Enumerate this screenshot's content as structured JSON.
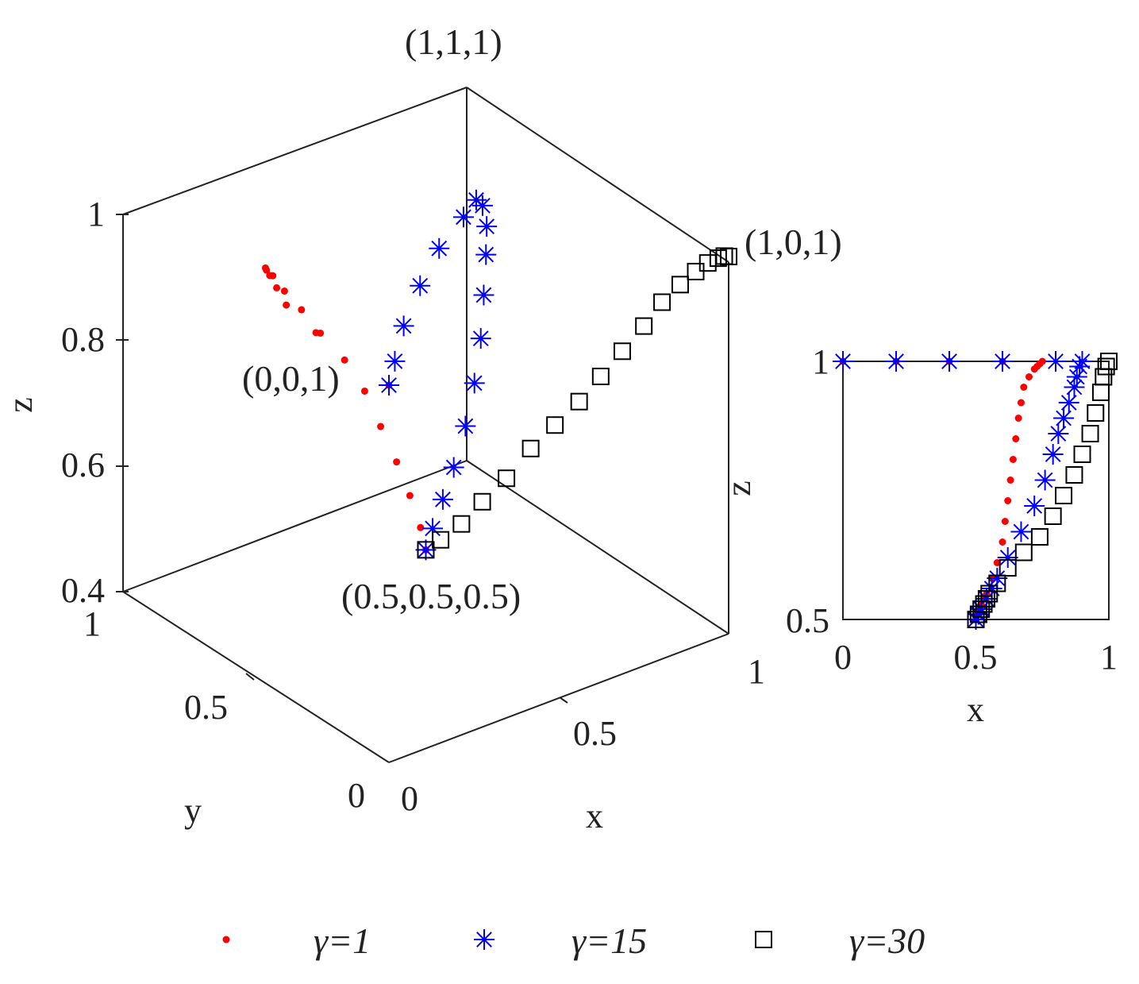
{
  "colors": {
    "s1": "#ff0000",
    "s2": "#0000ff",
    "s3": "#000000",
    "axis": "#222222"
  },
  "legend": [
    {
      "text": "γ=1",
      "marker": "dot",
      "color": "#ff0000"
    },
    {
      "text": "γ=15",
      "marker": "asterisk",
      "color": "#0000ff"
    },
    {
      "text": "γ=30",
      "marker": "square",
      "color": "#000000"
    }
  ],
  "chart_data": [
    {
      "type": "scatter",
      "title": "",
      "xlabel": "x",
      "ylabel": "y",
      "zlabel": "z",
      "xlim": [
        0,
        1
      ],
      "ylim": [
        0,
        1
      ],
      "zlim": [
        0.4,
        1
      ],
      "xticks": [
        "0",
        "0.5",
        "1"
      ],
      "yticks": [
        "0",
        "0.5",
        "1"
      ],
      "zticks": [
        "0.4",
        "0.6",
        "0.8",
        "1"
      ],
      "grid": false,
      "legend_position": "bottom",
      "annotations": [
        "(1,1,1)",
        "(1,0,1)",
        "(0,0,1)",
        "(0.5,0.5,0.5)"
      ],
      "series": [
        {
          "name": "γ=1",
          "marker": "dot",
          "x": [
            0.5,
            0.5,
            0.5,
            0.5,
            0.5,
            0.5,
            0.48,
            0.44,
            0.4,
            0.35,
            0.3,
            0.25,
            0.2,
            0.15,
            0.1,
            0.05,
            0.02,
            0.0
          ],
          "y": [
            0.5,
            0.52,
            0.56,
            0.61,
            0.67,
            0.73,
            0.78,
            0.82,
            0.84,
            0.84,
            0.82,
            0.78,
            0.72,
            0.64,
            0.55,
            0.45,
            0.3,
            0.0
          ],
          "z": [
            0.5,
            0.53,
            0.57,
            0.61,
            0.65,
            0.69,
            0.73,
            0.77,
            0.81,
            0.85,
            0.89,
            0.92,
            0.95,
            0.97,
            0.985,
            0.995,
            0.998,
            1.0
          ]
        },
        {
          "name": "γ=15",
          "marker": "asterisk",
          "x": [
            0.5,
            0.52,
            0.55,
            0.59,
            0.64,
            0.69,
            0.74,
            0.78,
            0.81,
            0.82,
            0.8,
            0.75,
            0.65,
            0.5,
            0.35,
            0.2,
            0.08,
            0.0
          ],
          "y": [
            0.5,
            0.5,
            0.5,
            0.51,
            0.53,
            0.56,
            0.6,
            0.64,
            0.67,
            0.68,
            0.67,
            0.63,
            0.55,
            0.45,
            0.33,
            0.2,
            0.08,
            0.0
          ],
          "z": [
            0.5,
            0.53,
            0.57,
            0.61,
            0.66,
            0.71,
            0.76,
            0.81,
            0.86,
            0.9,
            0.94,
            0.97,
            0.985,
            0.993,
            0.997,
            0.999,
            1.0,
            1.0
          ]
        },
        {
          "name": "γ=30",
          "marker": "square",
          "x": [
            0.5,
            0.52,
            0.55,
            0.58,
            0.62,
            0.66,
            0.7,
            0.74,
            0.78,
            0.82,
            0.86,
            0.89,
            0.92,
            0.95,
            0.97,
            0.985,
            0.995,
            1.0
          ],
          "y": [
            0.5,
            0.47,
            0.43,
            0.39,
            0.35,
            0.31,
            0.27,
            0.23,
            0.2,
            0.17,
            0.14,
            0.11,
            0.08,
            0.06,
            0.04,
            0.02,
            0.01,
            0.0
          ],
          "z": [
            0.5,
            0.52,
            0.55,
            0.59,
            0.63,
            0.68,
            0.72,
            0.76,
            0.8,
            0.84,
            0.88,
            0.92,
            0.95,
            0.97,
            0.985,
            0.995,
            0.999,
            1.0
          ]
        }
      ]
    },
    {
      "type": "scatter",
      "title": "",
      "xlabel": "x",
      "ylabel": "z",
      "xlim": [
        0,
        1
      ],
      "ylim": [
        0.5,
        1
      ],
      "xticks": [
        "0",
        "0.5",
        "1"
      ],
      "yticks": [
        "0.5",
        "1"
      ],
      "grid": false,
      "series": [
        {
          "name": "γ=1",
          "marker": "dot",
          "x": [
            0.5,
            0.5,
            0.51,
            0.52,
            0.53,
            0.54,
            0.56,
            0.58,
            0.6,
            0.61,
            0.62,
            0.63,
            0.64,
            0.65,
            0.66,
            0.67,
            0.68,
            0.7,
            0.72,
            0.73,
            0.74,
            0.75,
            0.6,
            0.4,
            0.2,
            0.0
          ],
          "y": [
            0.5,
            0.51,
            0.52,
            0.53,
            0.54,
            0.55,
            0.58,
            0.61,
            0.65,
            0.69,
            0.73,
            0.77,
            0.81,
            0.85,
            0.89,
            0.92,
            0.95,
            0.97,
            0.985,
            0.99,
            0.995,
            1.0,
            1.0,
            1.0,
            1.0,
            1.0
          ]
        },
        {
          "name": "γ=15",
          "marker": "asterisk",
          "x": [
            0.5,
            0.51,
            0.52,
            0.54,
            0.56,
            0.58,
            0.62,
            0.67,
            0.72,
            0.76,
            0.79,
            0.81,
            0.83,
            0.85,
            0.87,
            0.88,
            0.89,
            0.9,
            0.8,
            0.6,
            0.4,
            0.2,
            0.0
          ],
          "y": [
            0.5,
            0.51,
            0.52,
            0.54,
            0.56,
            0.58,
            0.62,
            0.67,
            0.72,
            0.77,
            0.82,
            0.86,
            0.89,
            0.92,
            0.95,
            0.97,
            0.99,
            1.0,
            1.0,
            1.0,
            1.0,
            1.0,
            1.0
          ]
        },
        {
          "name": "γ=30",
          "marker": "square",
          "x": [
            0.5,
            0.51,
            0.52,
            0.53,
            0.54,
            0.55,
            0.58,
            0.62,
            0.68,
            0.74,
            0.79,
            0.83,
            0.87,
            0.9,
            0.93,
            0.95,
            0.97,
            0.98,
            0.99,
            1.0
          ],
          "y": [
            0.5,
            0.51,
            0.52,
            0.53,
            0.54,
            0.55,
            0.57,
            0.6,
            0.63,
            0.66,
            0.7,
            0.74,
            0.78,
            0.82,
            0.86,
            0.9,
            0.94,
            0.97,
            0.99,
            1.0
          ]
        }
      ]
    }
  ]
}
